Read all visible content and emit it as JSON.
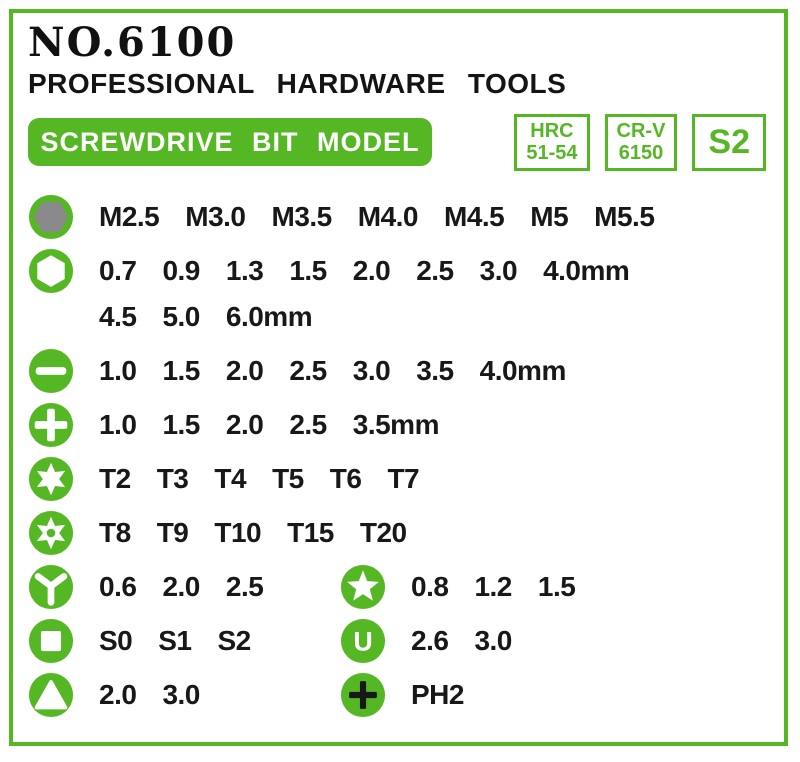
{
  "colors": {
    "green": "#55b724",
    "gray": "#8a8a8a",
    "text": "#181818",
    "white": "#ffffff"
  },
  "header": {
    "model_no": "NO.6100",
    "subtitle": "PROFESSIONAL HARDWARE TOOLS",
    "banner_label": "SCREWDRIVE BIT MODEL",
    "badges": [
      {
        "id": "hrc-hardness",
        "lines": [
          "HRC",
          "51-54"
        ],
        "large": false
      },
      {
        "id": "crv-material",
        "lines": [
          "CR-V",
          "6150"
        ],
        "large": false
      },
      {
        "id": "s2-steel",
        "lines": [
          "S2"
        ],
        "large": true
      }
    ]
  },
  "bit_rows": [
    {
      "groups": [
        {
          "icon": "hex-socket-icon",
          "lines": [
            [
              "M2.5",
              "M3.0",
              "M3.5",
              "M4.0",
              "M4.5",
              "M5",
              "M5.5"
            ]
          ]
        }
      ]
    },
    {
      "groups": [
        {
          "icon": "hex-outline-icon",
          "lines": [
            [
              "0.7",
              "0.9",
              "1.3",
              "1.5",
              "2.0",
              "2.5",
              "3.0",
              "4.0mm"
            ],
            [
              "4.5",
              "5.0",
              "6.0mm"
            ]
          ]
        }
      ]
    },
    {
      "groups": [
        {
          "icon": "slotted-icon",
          "lines": [
            [
              "1.0",
              "1.5",
              "2.0",
              "2.5",
              "3.0",
              "3.5",
              "4.0mm"
            ]
          ]
        }
      ]
    },
    {
      "groups": [
        {
          "icon": "phillips-icon",
          "lines": [
            [
              "1.0",
              "1.5",
              "2.0",
              "2.5",
              "3.5mm"
            ]
          ]
        }
      ]
    },
    {
      "groups": [
        {
          "icon": "torx-icon",
          "lines": [
            [
              "T2",
              "T3",
              "T4",
              "T5",
              "T6",
              "T7"
            ]
          ]
        }
      ]
    },
    {
      "groups": [
        {
          "icon": "torx-security-icon",
          "lines": [
            [
              "T8",
              "T9",
              "T10",
              "T15",
              "T20"
            ]
          ]
        }
      ]
    },
    {
      "groups": [
        {
          "icon": "tri-wing-icon",
          "lines": [
            [
              "0.6",
              "2.0",
              "2.5"
            ]
          ]
        },
        {
          "icon": "star-icon",
          "lines": [
            [
              "0.8",
              "1.2",
              "1.5"
            ]
          ]
        }
      ]
    },
    {
      "groups": [
        {
          "icon": "square-icon",
          "lines": [
            [
              "S0",
              "S1",
              "S2"
            ]
          ]
        },
        {
          "icon": "u-type-icon",
          "lines": [
            [
              "2.6",
              "3.0"
            ]
          ]
        }
      ]
    },
    {
      "groups": [
        {
          "icon": "triangle-icon",
          "lines": [
            [
              "2.0",
              "3.0"
            ]
          ]
        },
        {
          "icon": "phillips-black-icon",
          "lines": [
            [
              "PH2"
            ]
          ]
        }
      ]
    }
  ]
}
